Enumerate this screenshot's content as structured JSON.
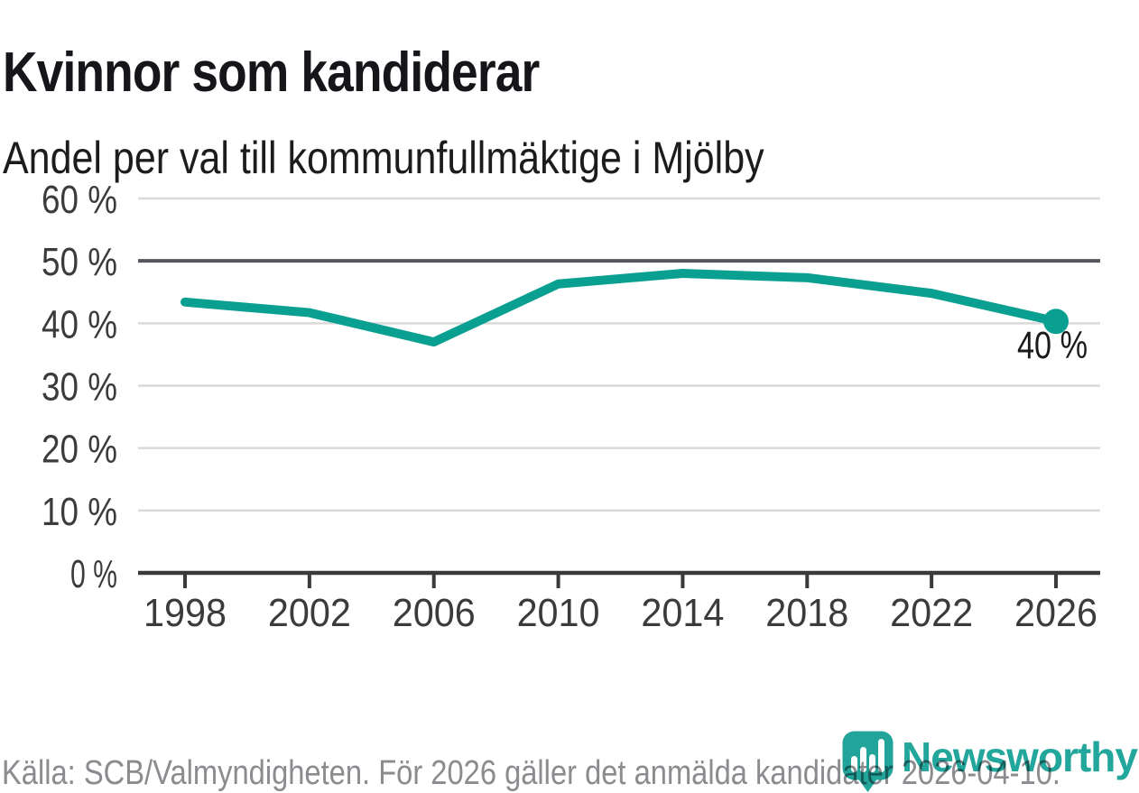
{
  "header": {
    "title": "Kvinnor som kandiderar",
    "subtitle": "Andel per val till kommunfullmäktige i Mjölby"
  },
  "footer": {
    "source": "Källa: SCB/Valmyndigheten. För 2026 gäller det anmälda kandidater 2026-04-10.",
    "brand": "Newsworthy",
    "brand_icon": "bar-chart-pin-icon"
  },
  "colors": {
    "accent": "#0aa091",
    "brand": "#23a69b",
    "grid": "#d9d9d9",
    "grid_emphasis": "#55565b",
    "axis": "#3a3a3d",
    "text": "#1a1a1a",
    "muted_text": "#8b8b90"
  },
  "chart_data": {
    "type": "line",
    "title": "Kvinnor som kandiderar",
    "subtitle": "Andel per val till kommunfullmäktige i Mjölby",
    "x": [
      1998,
      2002,
      2006,
      2010,
      2014,
      2018,
      2022,
      2026
    ],
    "xtick_labels": [
      "1998",
      "2002",
      "2006",
      "2010",
      "2014",
      "2018",
      "2022",
      "2026"
    ],
    "values": [
      43.4,
      41.7,
      37.0,
      46.3,
      48.0,
      47.3,
      44.8,
      40.3
    ],
    "unit": "%",
    "end_label": "40 %",
    "ylim": [
      0,
      60
    ],
    "yticks": [
      0,
      10,
      20,
      30,
      40,
      50,
      60
    ],
    "ytick_labels": [
      "0 %",
      "10 %",
      "20 %",
      "30 %",
      "40 %",
      "50 %",
      "60 %"
    ],
    "emphasized_gridline": 50,
    "grid": true,
    "legend": "none",
    "line_color": "#0aa091"
  }
}
